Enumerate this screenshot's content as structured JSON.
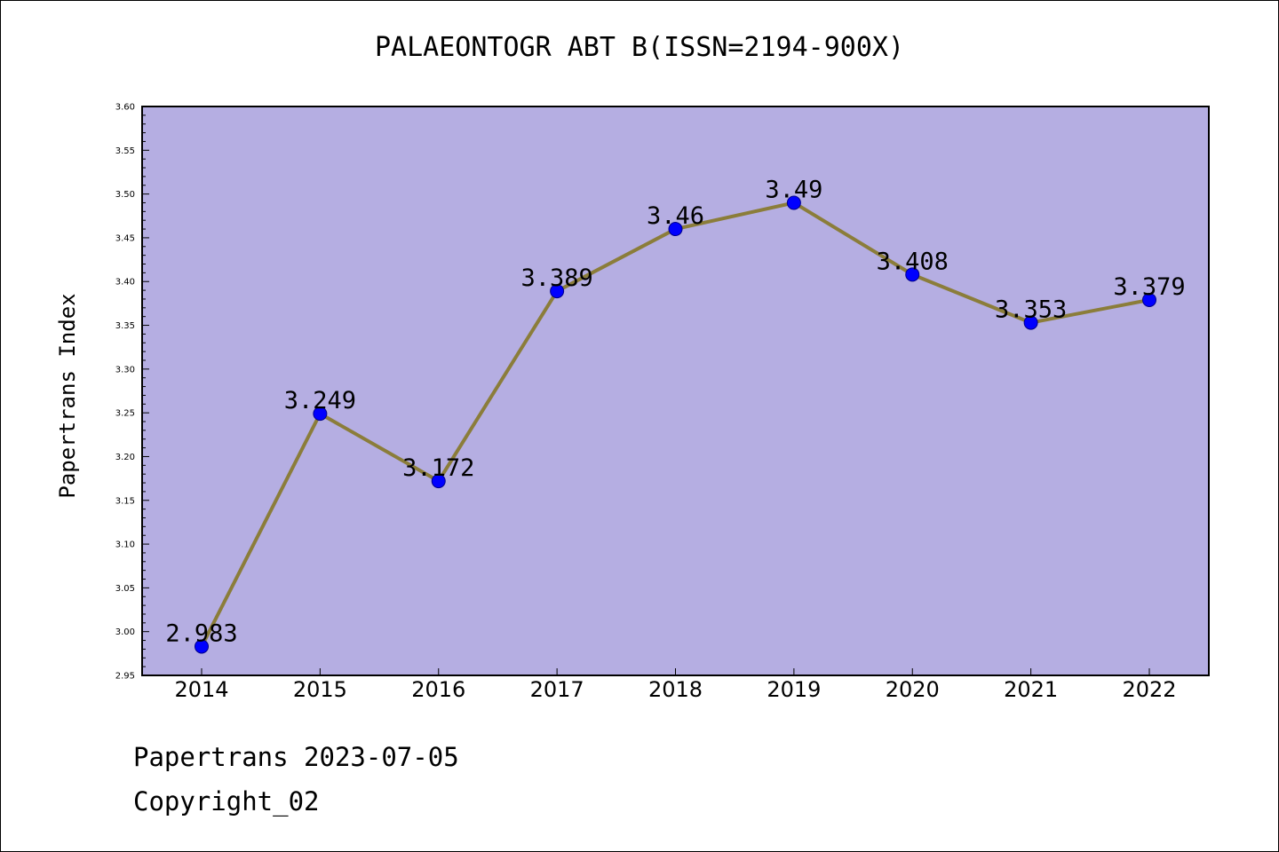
{
  "title": "PALAEONTOGR ABT B(ISSN=2194-900X)",
  "footer": {
    "line1": "Papertrans 2023-07-05",
    "line2": "Copyright_02"
  },
  "chart_data": {
    "type": "line",
    "title": "PALAEONTOGR ABT B(ISSN=2194-900X)",
    "xlabel": "",
    "ylabel": "Papertrans Index",
    "categories": [
      "2014",
      "2015",
      "2016",
      "2017",
      "2018",
      "2019",
      "2020",
      "2021",
      "2022"
    ],
    "values": [
      2.983,
      3.249,
      3.172,
      3.389,
      3.46,
      3.49,
      3.408,
      3.353,
      3.379
    ],
    "data_labels": [
      "2.983",
      "3.249",
      "3.172",
      "3.389",
      "3.46",
      "3.49",
      "3.408",
      "3.353",
      "3.379"
    ],
    "ylim": [
      2.95,
      3.6
    ],
    "yticks": [
      "2.95",
      "3.00",
      "3.05",
      "3.10",
      "3.15",
      "3.20",
      "3.25",
      "3.30",
      "3.35",
      "3.40",
      "3.45",
      "3.50",
      "3.55",
      "3.60"
    ],
    "grid": false,
    "colors": {
      "plot_background": "#b5aee2",
      "line": "#8b7d3a",
      "marker": "#0000ff"
    }
  }
}
